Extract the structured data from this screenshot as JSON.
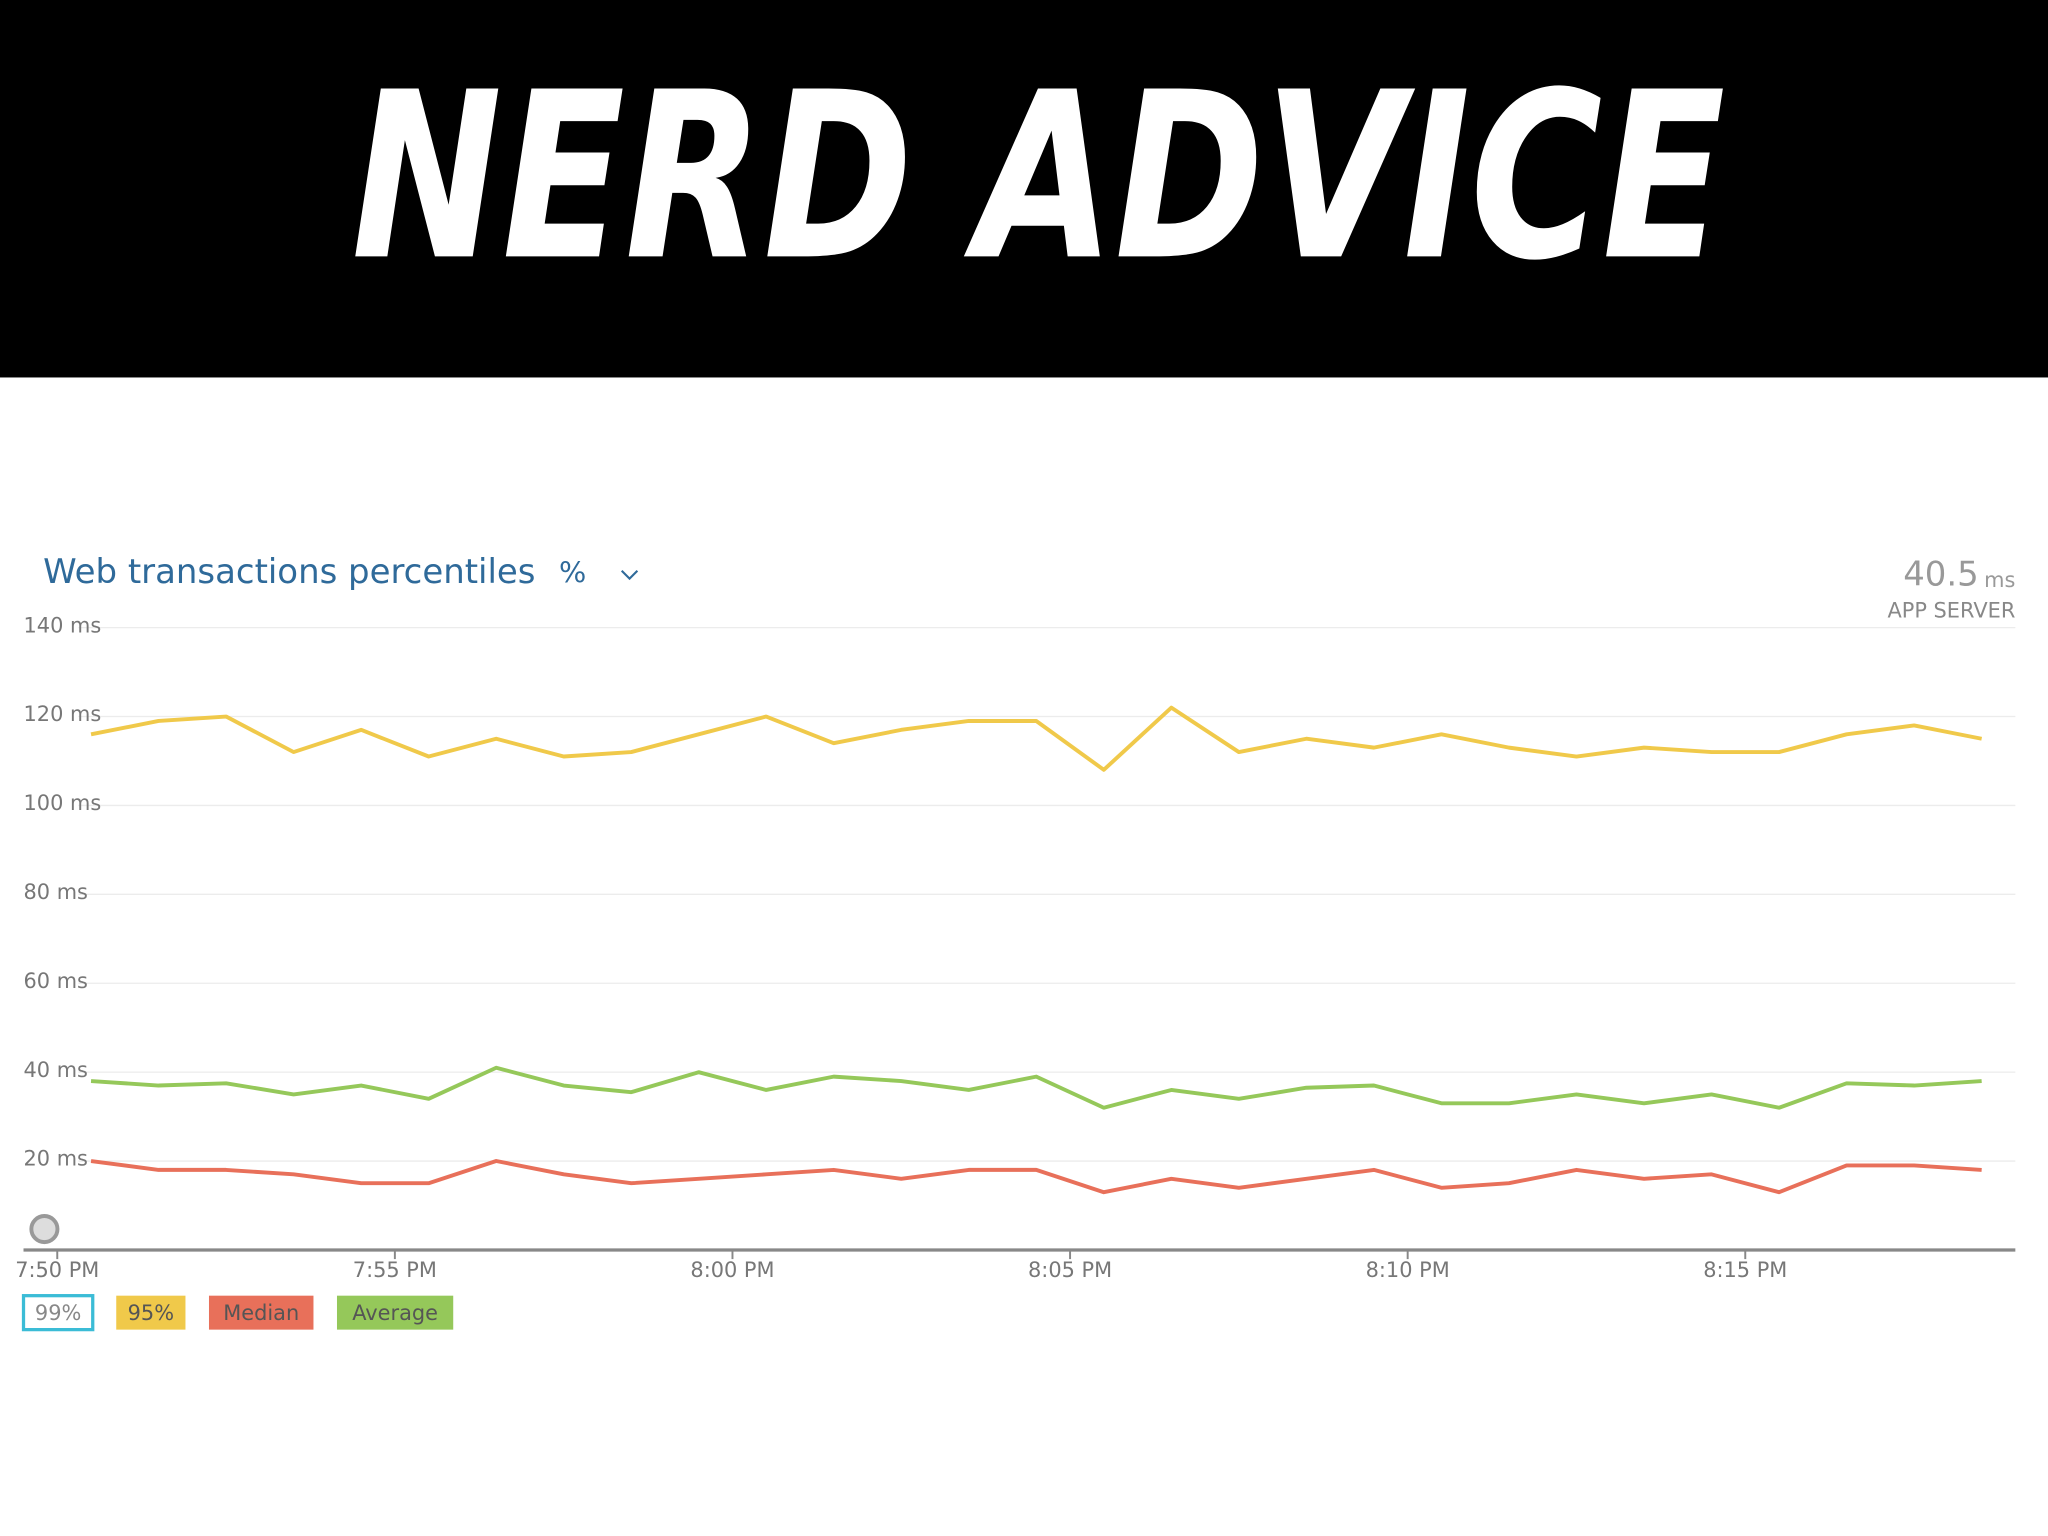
{
  "banner": {
    "title": "NERD ADVICE"
  },
  "chart_data": {
    "type": "line",
    "title": "Web transactions percentiles",
    "unit_menu": "%",
    "summary": {
      "value": 40.5,
      "unit": "ms",
      "label": "APP SERVER"
    },
    "x": [
      0.5,
      1.5,
      2.5,
      3.5,
      4.5,
      5.5,
      6.5,
      7.5,
      8.5,
      9.5,
      10.5,
      11.5,
      12.5,
      13.5,
      14.5,
      15.5,
      16.5,
      17.5,
      18.5,
      19.5,
      20.5,
      21.5,
      22.5,
      23.5,
      24.5,
      25.5,
      26.5,
      27.5,
      28.5
    ],
    "xlim": [
      -0.5,
      29
    ],
    "xticks": [
      {
        "value": 0,
        "label": "7:50 PM"
      },
      {
        "value": 5,
        "label": "7:55 PM"
      },
      {
        "value": 10,
        "label": "8:00 PM"
      },
      {
        "value": 15,
        "label": "8:05 PM"
      },
      {
        "value": 20,
        "label": "8:10 PM"
      },
      {
        "value": 25,
        "label": "8:15 PM"
      }
    ],
    "ylim": [
      0,
      140
    ],
    "yticks": [
      {
        "value": 20,
        "label": "20 ms"
      },
      {
        "value": 40,
        "label": "40 ms"
      },
      {
        "value": 60,
        "label": "60 ms"
      },
      {
        "value": 80,
        "label": "80 ms"
      },
      {
        "value": 100,
        "label": "100 ms"
      },
      {
        "value": 120,
        "label": "120 ms"
      },
      {
        "value": 140,
        "label": "140 ms"
      }
    ],
    "grid": true,
    "series": [
      {
        "name": "99%",
        "color": "#3bbcd6",
        "active": false,
        "values": [
          null,
          null,
          null,
          null,
          null,
          null,
          null,
          null,
          null,
          null,
          null,
          null,
          null,
          null,
          null,
          null,
          null,
          null,
          null,
          null,
          null,
          null,
          null,
          null,
          null,
          null,
          null,
          null,
          null
        ]
      },
      {
        "name": "95%",
        "color": "#f0c94a",
        "active": true,
        "values": [
          116,
          119,
          120,
          112,
          117,
          111,
          115,
          111,
          112,
          116,
          120,
          114,
          117,
          119,
          119,
          108,
          122,
          112,
          115,
          113,
          116,
          113,
          111,
          113,
          112,
          112,
          116,
          118,
          115
        ]
      },
      {
        "name": "Median",
        "color": "#e8705a",
        "active": true,
        "values": [
          20,
          18,
          18,
          17,
          15,
          15,
          20,
          17,
          15,
          16,
          17,
          18,
          16,
          18,
          18,
          13,
          16,
          14,
          16,
          18,
          14,
          15,
          18,
          16,
          17,
          13,
          19,
          19,
          18
        ]
      },
      {
        "name": "Average",
        "color": "#95c85a",
        "active": true,
        "values": [
          38,
          37,
          37.5,
          35,
          37,
          34,
          41,
          37,
          35.5,
          40,
          36,
          39,
          38,
          36,
          39,
          32,
          36,
          34,
          36.5,
          37,
          33,
          33,
          35,
          33,
          35,
          32,
          37.5,
          37,
          38
        ]
      }
    ]
  }
}
